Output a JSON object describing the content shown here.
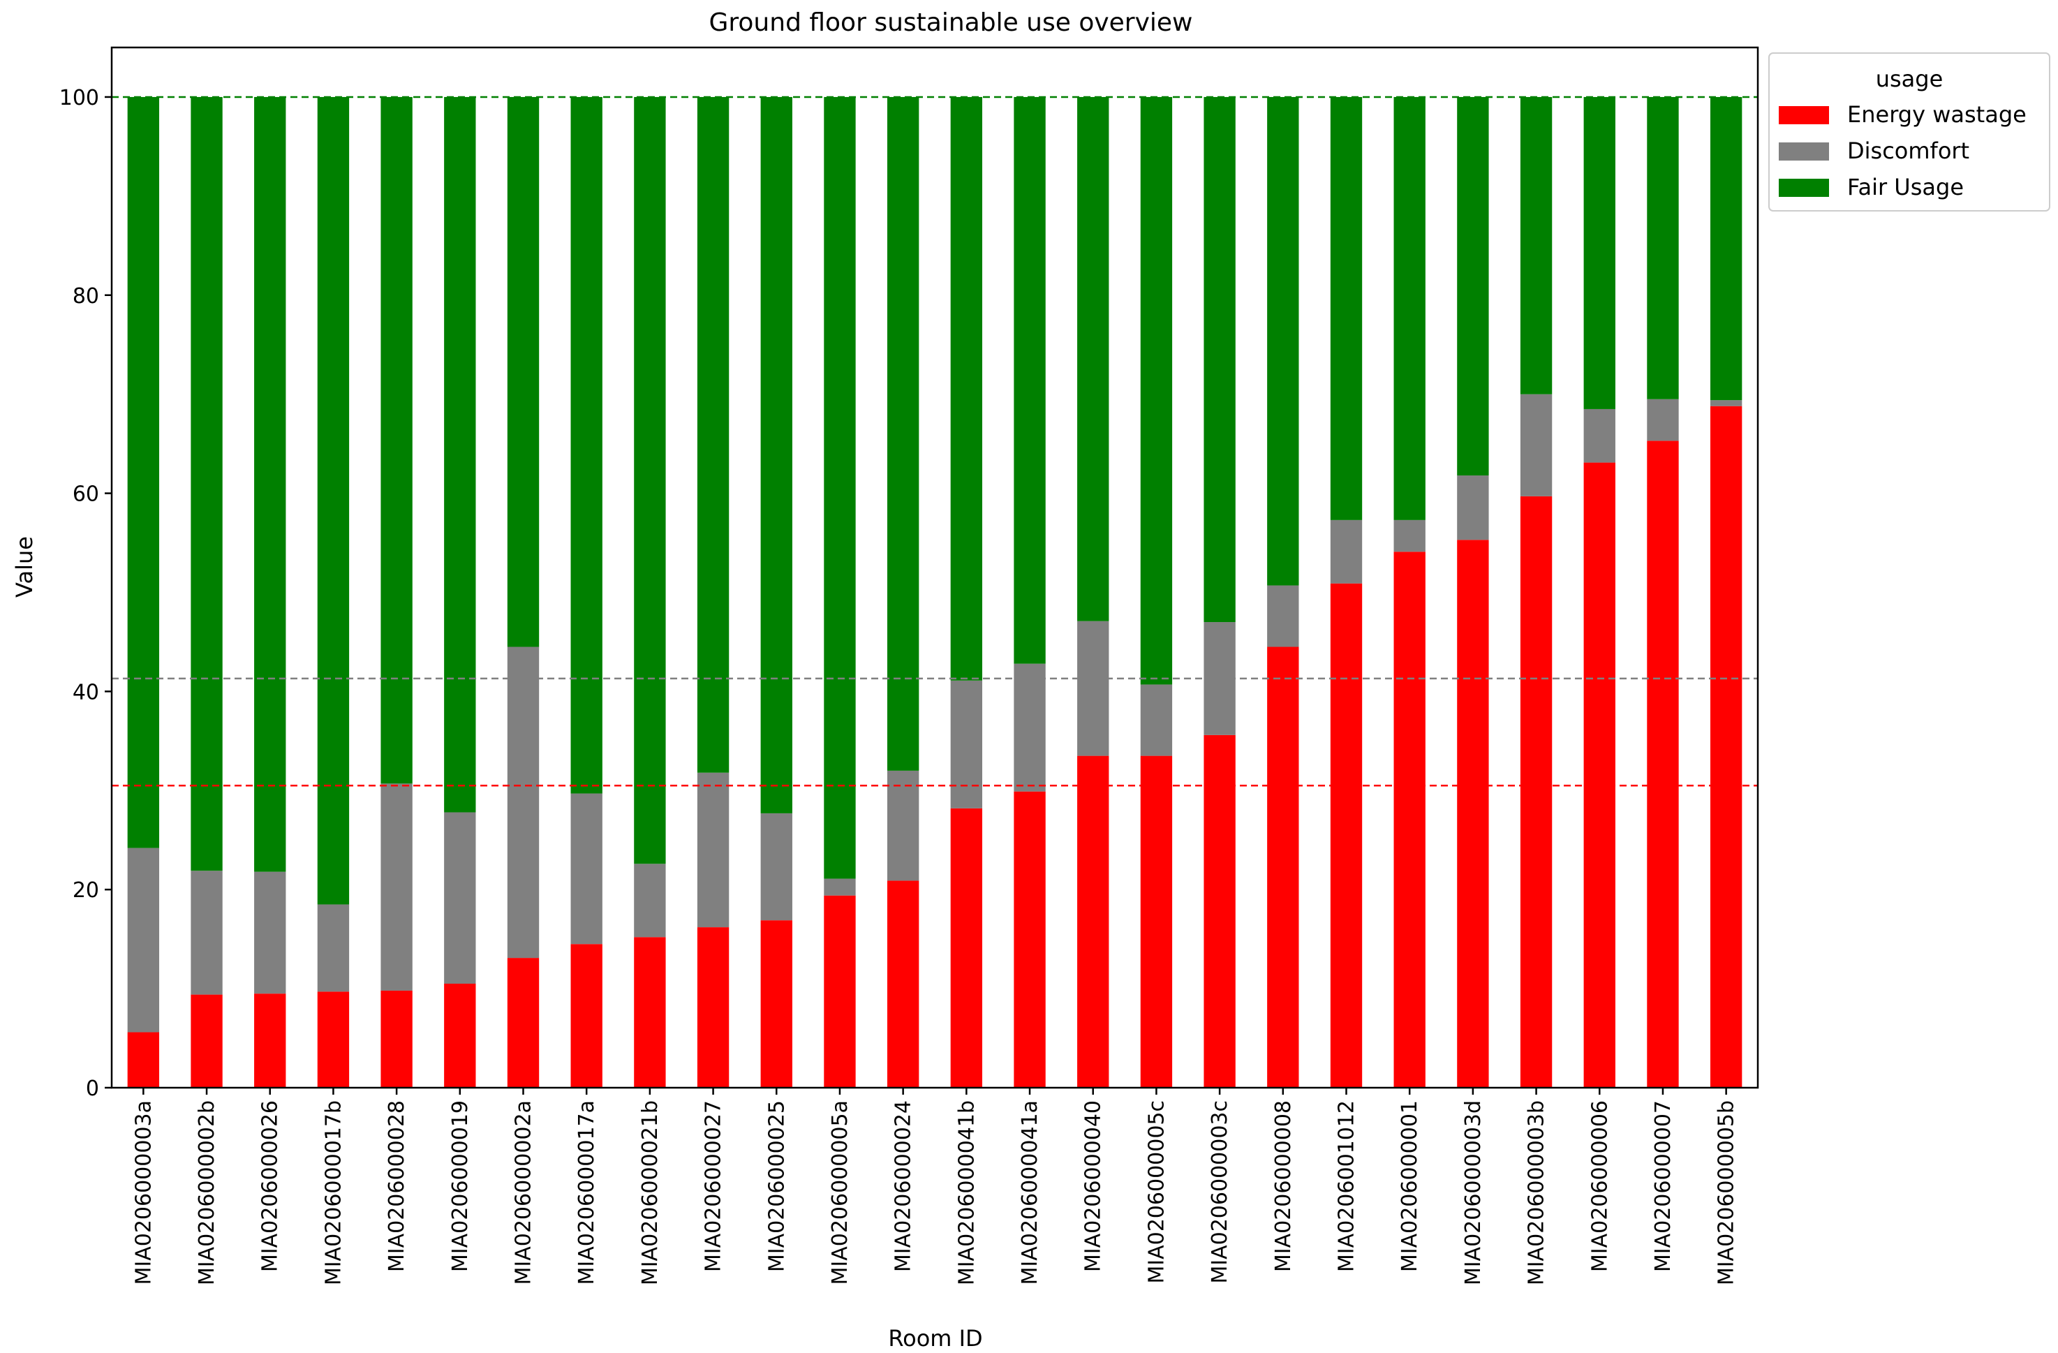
{
  "chart_data": {
    "type": "bar",
    "stacked": true,
    "title": "Ground floor sustainable use overview",
    "xlabel": "Room ID",
    "ylabel": "Value",
    "ylim": [
      0,
      105
    ],
    "yticks": [
      0,
      20,
      40,
      60,
      80,
      100
    ],
    "grid": false,
    "legend": {
      "title": "usage",
      "placement": "outside-top-right"
    },
    "categories": [
      "MIA0206000003a",
      "MIA0206000002b",
      "MIA0206000026",
      "MIA0206000017b",
      "MIA0206000028",
      "MIA0206000019",
      "MIA0206000002a",
      "MIA0206000017a",
      "MIA0206000021b",
      "MIA0206000027",
      "MIA0206000025",
      "MIA0206000005a",
      "MIA0206000024",
      "MIA0206000041b",
      "MIA0206000041a",
      "MIA0206000040",
      "MIA0206000005c",
      "MIA0206000003c",
      "MIA0206000008",
      "MIA0206001012",
      "MIA0206000001",
      "MIA0206000003d",
      "MIA0206000003b",
      "MIA0206000006",
      "MIA0206000007",
      "MIA0206000005b"
    ],
    "series": [
      {
        "name": "Energy wastage",
        "color": "#ff0000",
        "values": [
          5.6,
          9.4,
          9.5,
          9.7,
          9.8,
          10.5,
          13.1,
          14.5,
          15.2,
          16.2,
          16.9,
          19.4,
          20.9,
          28.2,
          29.9,
          33.5,
          33.5,
          35.6,
          44.5,
          50.9,
          54.1,
          55.3,
          59.7,
          63.1,
          65.3,
          68.8
        ]
      },
      {
        "name": "Discomfort",
        "color": "#808080",
        "values": [
          18.6,
          12.5,
          12.3,
          8.8,
          20.9,
          17.3,
          31.4,
          15.2,
          7.4,
          15.6,
          10.8,
          1.7,
          11.1,
          12.9,
          12.9,
          13.6,
          7.2,
          11.4,
          6.2,
          6.4,
          3.2,
          6.5,
          10.3,
          5.4,
          4.2,
          0.6
        ]
      },
      {
        "name": "Fair Usage",
        "color": "#008000",
        "values": [
          75.8,
          78.1,
          78.2,
          81.5,
          69.3,
          72.2,
          55.5,
          70.3,
          77.4,
          68.2,
          72.3,
          78.9,
          68.0,
          58.9,
          57.2,
          52.9,
          59.3,
          53.0,
          49.3,
          42.7,
          42.7,
          38.2,
          30.0,
          31.5,
          30.5,
          30.6
        ]
      }
    ],
    "reference_lines": [
      {
        "y": 100,
        "color": "#008000",
        "style": "dashed"
      },
      {
        "y": 41.3,
        "color": "#808080",
        "style": "dashed"
      },
      {
        "y": 30.5,
        "color": "#ff0000",
        "style": "dashed"
      }
    ]
  }
}
